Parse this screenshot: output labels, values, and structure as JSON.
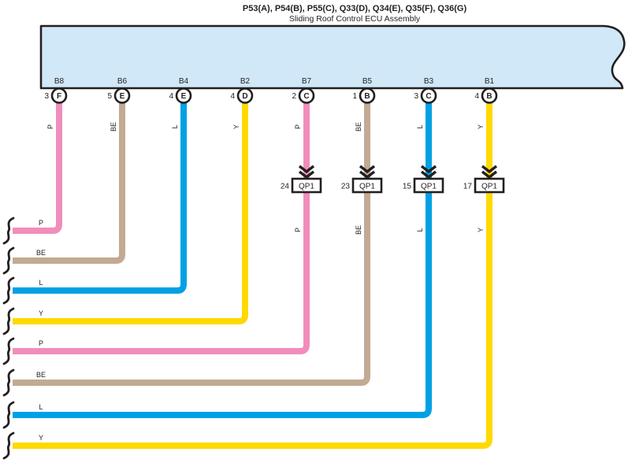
{
  "title": {
    "connector_codes": "P53(A), P54(B), P55(C), Q33(D), Q34(E), Q35(F), Q36(G)",
    "component_name": "Sliding Roof Control ECU Assembly"
  },
  "colors": {
    "pink": "#F18DBB",
    "beige": "#C2AA93",
    "blue": "#00A1E4",
    "yellow": "#FFD900",
    "ecu_fill": "#D0E8F8",
    "line": "#231F20",
    "background": "#FFFFFF"
  },
  "wire_color_legend": {
    "P": "pink",
    "BE": "beige",
    "L": "blue",
    "Y": "yellow"
  },
  "component": {
    "name": "Sliding Roof Control ECU Assembly"
  },
  "pins": [
    {
      "pin_label": "B8",
      "terminal_number": "3",
      "connector_letter": "F",
      "wire_code": "P",
      "wire_color": "pink",
      "junction": null
    },
    {
      "pin_label": "B6",
      "terminal_number": "5",
      "connector_letter": "E",
      "wire_code": "BE",
      "wire_color": "beige",
      "junction": null
    },
    {
      "pin_label": "B4",
      "terminal_number": "4",
      "connector_letter": "E",
      "wire_code": "L",
      "wire_color": "blue",
      "junction": null
    },
    {
      "pin_label": "B2",
      "terminal_number": "4",
      "connector_letter": "D",
      "wire_code": "Y",
      "wire_color": "yellow",
      "junction": null
    },
    {
      "pin_label": "B7",
      "terminal_number": "2",
      "connector_letter": "C",
      "wire_code": "P",
      "wire_color": "pink",
      "junction": {
        "number": "24",
        "label": "QP1"
      }
    },
    {
      "pin_label": "B5",
      "terminal_number": "1",
      "connector_letter": "B",
      "wire_code": "BE",
      "wire_color": "beige",
      "junction": {
        "number": "23",
        "label": "QP1"
      }
    },
    {
      "pin_label": "B3",
      "terminal_number": "3",
      "connector_letter": "C",
      "wire_code": "L",
      "wire_color": "blue",
      "junction": {
        "number": "15",
        "label": "QP1"
      }
    },
    {
      "pin_label": "B1",
      "terminal_number": "4",
      "connector_letter": "B",
      "wire_code": "Y",
      "wire_color": "yellow",
      "junction": {
        "number": "17",
        "label": "QP1"
      }
    }
  ]
}
